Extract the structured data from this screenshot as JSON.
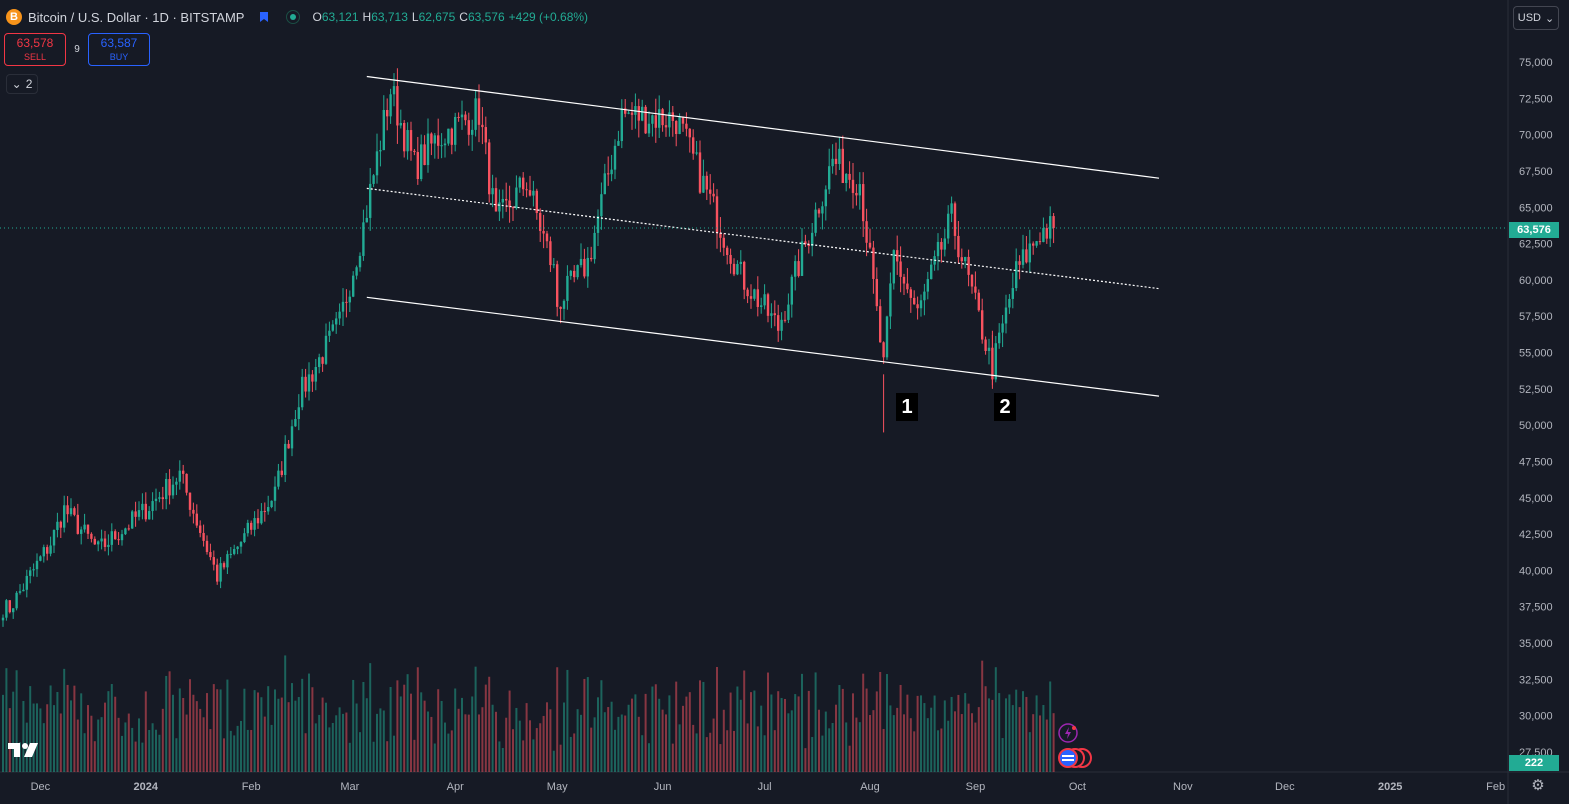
{
  "header": {
    "symbol_title": "Bitcoin / U.S. Dollar · 1D · BITSTAMP",
    "coin_glyph": "B",
    "ohlc": [
      {
        "k": "O",
        "v": "63,121"
      },
      {
        "k": "H",
        "v": "63,713"
      },
      {
        "k": "L",
        "v": "62,675"
      },
      {
        "k": "C",
        "v": "63,576"
      },
      {
        "k": "",
        "v": "+429 (+0.68%)"
      }
    ]
  },
  "trade": {
    "sell_price": "63,578",
    "sell_label": "SELL",
    "spread": "9",
    "buy_price": "63,587",
    "buy_label": "BUY"
  },
  "indicators_toggle": {
    "count": "2",
    "icon": "chevron-down-icon"
  },
  "currency": {
    "label": "USD",
    "icon": "chevron-down-icon"
  },
  "price_axis": {
    "ticks": [
      "75,000",
      "72,500",
      "70,000",
      "67,500",
      "65,000",
      "62,500",
      "60,000",
      "57,500",
      "55,000",
      "52,500",
      "50,000",
      "47,500",
      "45,000",
      "42,500",
      "40,000",
      "37,500",
      "35,000",
      "32,500",
      "30,000",
      "27,500"
    ],
    "last_price_label": "63,576",
    "volume_label": "222"
  },
  "time_axis": {
    "ticks": [
      "Dec",
      "2024",
      "Feb",
      "Mar",
      "Apr",
      "May",
      "Jun",
      "Jul",
      "Aug",
      "Sep",
      "Oct",
      "Nov",
      "Dec",
      "2025",
      "Feb"
    ]
  },
  "annotations": {
    "label_1": "1",
    "label_2": "2"
  },
  "colors": {
    "background": "#161a25",
    "up": "#22ab94",
    "down": "#f7525f",
    "grid": "#1e222d",
    "channel": "#ffffff",
    "last_price": "#22ab94"
  },
  "chart_data": {
    "type": "candlestick",
    "symbol": "BTCUSD",
    "interval": "1D",
    "exchange": "BITSTAMP",
    "ylim": [
      27500,
      76250
    ],
    "anchors": [
      {
        "date": "2023-11-22",
        "close": 37400
      },
      {
        "date": "2023-12-04",
        "close": 41900
      },
      {
        "date": "2023-12-08",
        "close": 44200
      },
      {
        "date": "2023-12-18",
        "close": 41400
      },
      {
        "date": "2024-01-01",
        "close": 44200
      },
      {
        "date": "2024-01-11",
        "close": 46600
      },
      {
        "date": "2024-01-22",
        "close": 39600
      },
      {
        "date": "2024-02-08",
        "close": 45300
      },
      {
        "date": "2024-02-15",
        "close": 52000
      },
      {
        "date": "2024-02-27",
        "close": 57000
      },
      {
        "date": "2024-03-05",
        "close": 63700
      },
      {
        "date": "2024-03-13",
        "close": 73100
      },
      {
        "date": "2024-03-20",
        "close": 67800
      },
      {
        "date": "2024-03-27",
        "close": 69800
      },
      {
        "date": "2024-04-08",
        "close": 71600
      },
      {
        "date": "2024-04-13",
        "close": 63900
      },
      {
        "date": "2024-04-22",
        "close": 66800
      },
      {
        "date": "2024-04-30",
        "close": 60600
      },
      {
        "date": "2024-05-01",
        "close": 58300
      },
      {
        "date": "2024-05-10",
        "close": 61200
      },
      {
        "date": "2024-05-20",
        "close": 71400
      },
      {
        "date": "2024-06-05",
        "close": 71100
      },
      {
        "date": "2024-06-24",
        "close": 60300
      },
      {
        "date": "2024-07-05",
        "close": 56700
      },
      {
        "date": "2024-07-21",
        "close": 68200
      },
      {
        "date": "2024-07-29",
        "close": 66800
      },
      {
        "date": "2024-08-05",
        "close": 54000
      },
      {
        "date": "2024-08-08",
        "close": 61700
      },
      {
        "date": "2024-08-15",
        "close": 57600
      },
      {
        "date": "2024-08-25",
        "close": 64200
      },
      {
        "date": "2024-09-06",
        "close": 53900
      },
      {
        "date": "2024-09-13",
        "close": 60500
      },
      {
        "date": "2024-09-20",
        "close": 63300
      },
      {
        "date": "2024-09-24",
        "close": 63576
      }
    ],
    "channel": {
      "upper": [
        {
          "date": "2024-03-06",
          "value": 74000
        },
        {
          "date": "2024-10-25",
          "value": 67000
        }
      ],
      "middle": [
        {
          "date": "2024-03-06",
          "value": 66300
        },
        {
          "date": "2024-10-25",
          "value": 59400
        }
      ],
      "lower": [
        {
          "date": "2024-03-06",
          "value": 58800
        },
        {
          "date": "2024-10-25",
          "value": 52000
        }
      ]
    },
    "marked_lows": [
      {
        "label": "1",
        "date": "2024-08-05",
        "value": 49500
      },
      {
        "label": "2",
        "date": "2024-09-06",
        "value": 52500
      }
    ],
    "last_price": 63576,
    "volume_last": 222
  }
}
